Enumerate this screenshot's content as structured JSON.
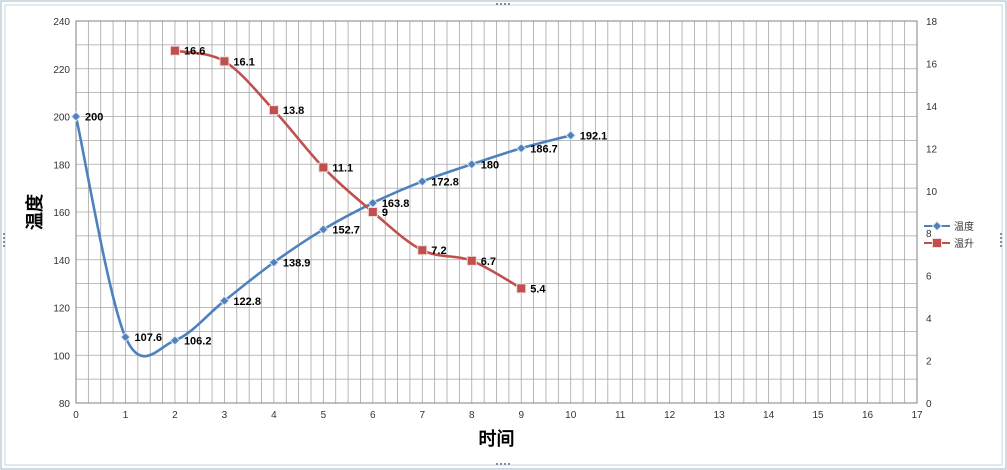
{
  "chart_data": {
    "type": "line",
    "xlabel": "时间",
    "ylabel": "温度",
    "xlim": [
      0,
      17
    ],
    "xticks": [
      0,
      1,
      2,
      3,
      4,
      5,
      6,
      7,
      8,
      9,
      10,
      11,
      12,
      13,
      14,
      15,
      16,
      17
    ],
    "ylim": [
      80,
      240
    ],
    "yticks": [
      80,
      100,
      120,
      140,
      160,
      180,
      200,
      220,
      240
    ],
    "y2lim": [
      0,
      18
    ],
    "y2ticks": [
      0,
      2,
      4,
      6,
      8,
      10,
      12,
      14,
      16,
      18
    ],
    "grid": true,
    "legend_position": "right",
    "smooth": true,
    "series": [
      {
        "name": "温度",
        "axis": "left",
        "color": "#4f81bd",
        "marker": "diamond",
        "x": [
          0,
          1,
          2,
          3,
          4,
          5,
          6,
          7,
          8,
          9,
          10
        ],
        "values": [
          200,
          107.6,
          106.2,
          122.8,
          138.9,
          152.7,
          163.8,
          172.8,
          180,
          186.7,
          192.1
        ],
        "labels": [
          "200",
          "107.6",
          "106.2",
          "122.8",
          "138.9",
          "152.7",
          "163.8",
          "172.8",
          "180",
          "186.7",
          "192.1"
        ]
      },
      {
        "name": "温升",
        "axis": "right",
        "color": "#c0504d",
        "marker": "square",
        "x": [
          2,
          3,
          4,
          5,
          6,
          7,
          8,
          9
        ],
        "values": [
          16.6,
          16.1,
          13.8,
          11.1,
          9,
          7.2,
          6.7,
          5.4
        ],
        "labels": [
          "16.6",
          "16.1",
          "13.8",
          "11.1",
          "9",
          "7.2",
          "6.7",
          "5.4"
        ]
      }
    ]
  }
}
